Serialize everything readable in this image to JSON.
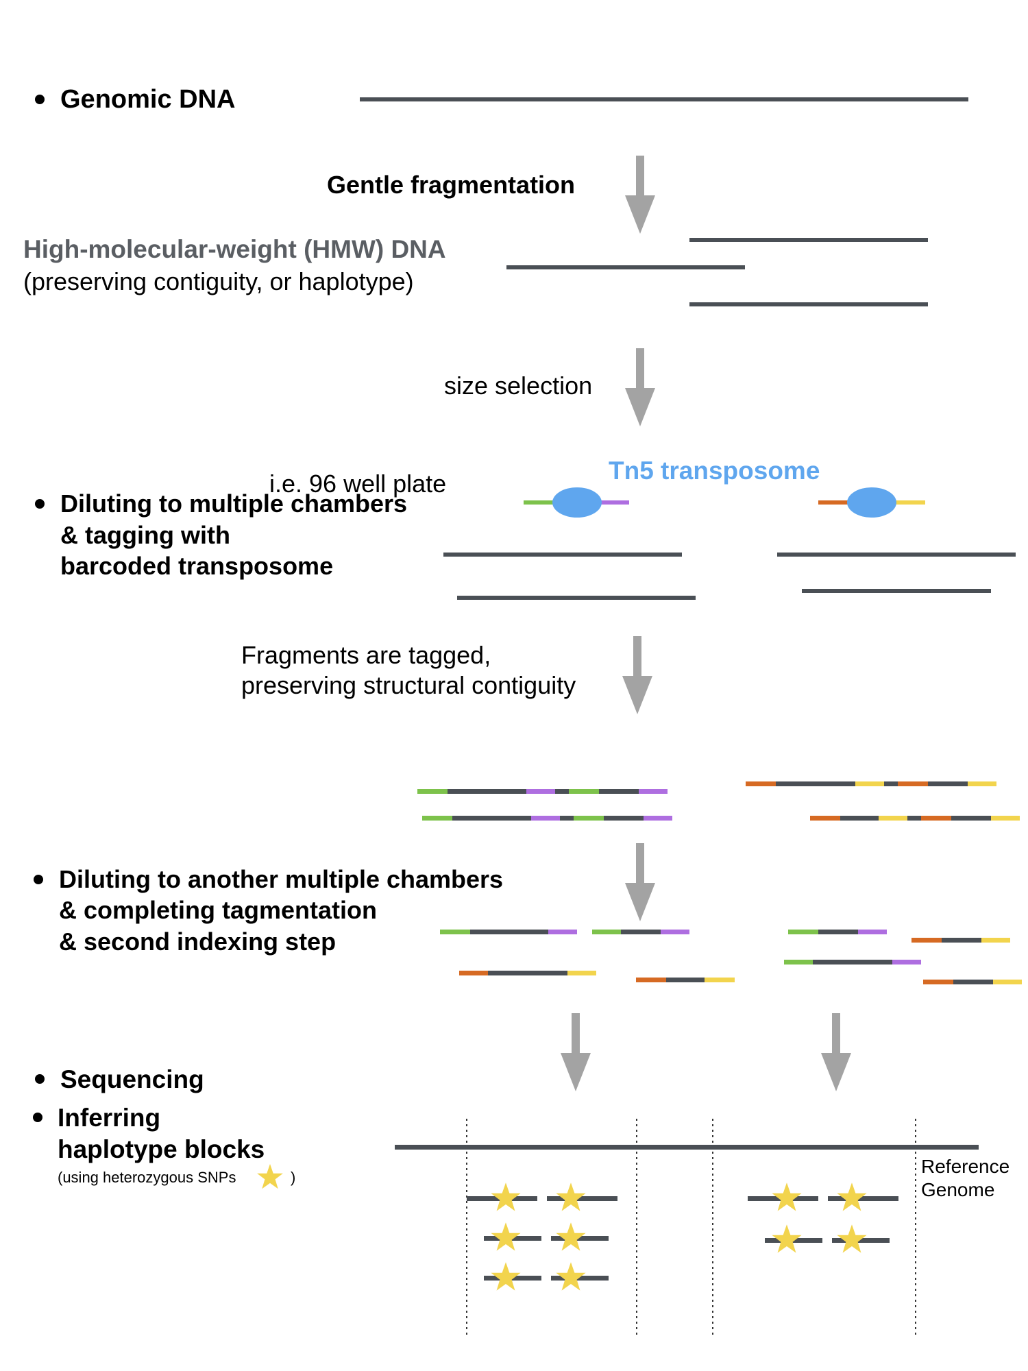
{
  "colors": {
    "dna": "#4a4f55",
    "arrow": "#a3a3a3",
    "hmw": "#5a5e63",
    "tn5": "#5fa6ee",
    "green": "#7dc24b",
    "purple": "#ae6ee0",
    "orange": "#d66a23",
    "yellow": "#f2d44d",
    "star": "#f2d44d"
  },
  "labels": {
    "genomic_dna": "Genomic DNA",
    "gentle_fragmentation": "Gentle fragmentation",
    "hmw_title": "High-molecular-weight (HMW) DNA",
    "hmw_sub": "(preserving contiguity, or haplotype)",
    "size_selection": "size selection",
    "well_plate": "i.e. 96 well plate",
    "tn5": "Tn5 transposome",
    "diluting1_line1": "Diluting to multiple chambers",
    "diluting1_line2": "& tagging with",
    "diluting1_line3": "barcoded transposome",
    "fragments_line1": "Fragments are tagged,",
    "fragments_line2": "preserving structural contiguity",
    "diluting2_line1": "Diluting to another multiple chambers",
    "diluting2_line2": "& completing tagmentation",
    "diluting2_line3": "& second indexing step",
    "sequencing": "Sequencing",
    "inferring_line1": "Inferring",
    "inferring_line2": "haplotype blocks",
    "snps_note_open": "(using heterozygous SNPs",
    "snps_note_close": ")",
    "reference_line1": "Reference",
    "reference_line2": "Genome"
  }
}
